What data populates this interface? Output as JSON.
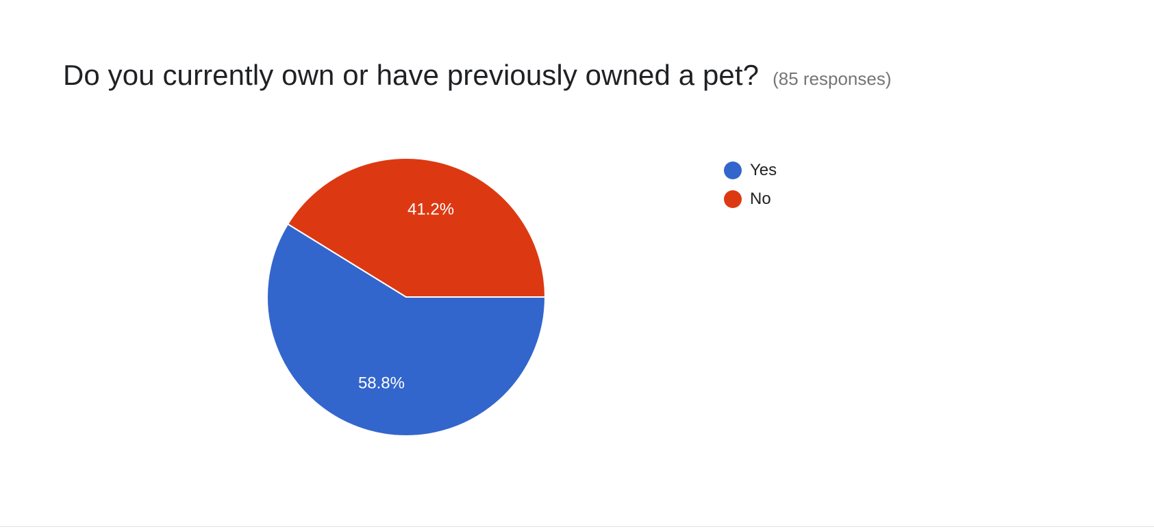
{
  "question": {
    "title": "Do you currently own or have previously owned a pet?",
    "response_count": "(85 responses)"
  },
  "chart_data": {
    "type": "pie",
    "categories": [
      "Yes",
      "No"
    ],
    "values": [
      58.8,
      41.2
    ],
    "labels": [
      "58.8%",
      "41.2%"
    ],
    "colors": [
      "#3366cc",
      "#dc3912"
    ],
    "legend_position": "right"
  }
}
